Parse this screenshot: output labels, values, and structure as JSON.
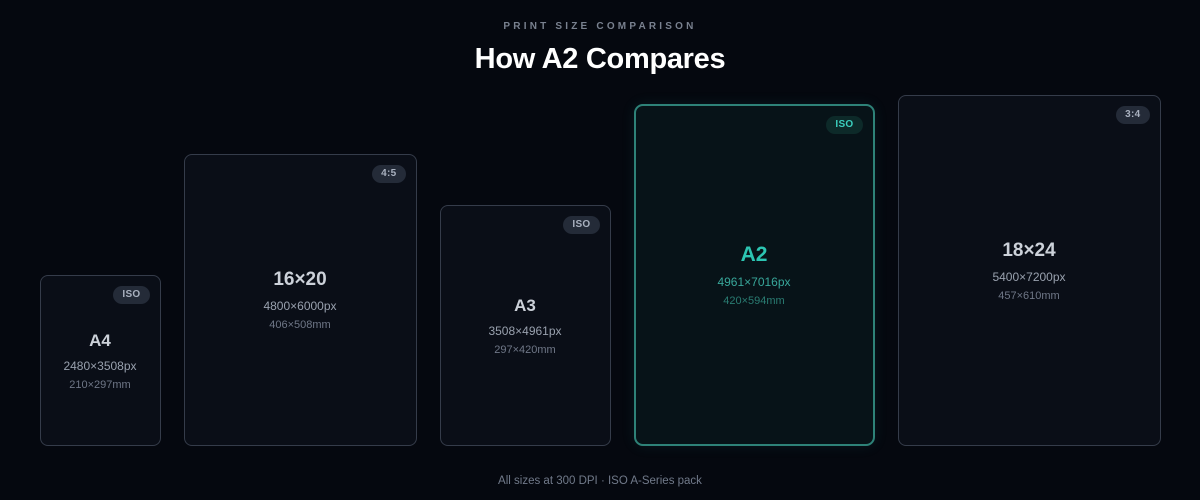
{
  "header": {
    "eyebrow": "PRINT SIZE COMPARISON",
    "title": "How A2 Compares"
  },
  "footer": {
    "note": "All sizes at 300 DPI · ISO A-Series pack"
  },
  "colors": {
    "page_bg": "#05080f",
    "card_bg": "#0a0e17",
    "card_border": "#353c4a",
    "accent": "#2cc5b2",
    "accent_border": "#2e8278",
    "accent_badge_bg": "#0d2a29",
    "badge_bg": "#242b38",
    "badge_text": "#a9b1bf",
    "title_text": "#ffffff",
    "muted_text": "#717a8a"
  },
  "chart_data": {
    "type": "bar",
    "title": "How A2 Compares",
    "subtitle": "PRINT SIZE COMPARISON",
    "note": "All sizes at 300 DPI · ISO A-Series pack",
    "unit": "mm",
    "categories": [
      "A4",
      "16×20",
      "A3",
      "A2",
      "18×24"
    ],
    "series": [
      {
        "name": "width_mm",
        "values": [
          210,
          406,
          297,
          420,
          457
        ]
      },
      {
        "name": "height_mm",
        "values": [
          297,
          508,
          420,
          594,
          610
        ]
      }
    ],
    "highlighted_category": "A2"
  },
  "cards": [
    {
      "name": "A4",
      "px_label": "2480×3508px",
      "mm_label": "210×297mm",
      "badge": "ISO",
      "mm_w": 210,
      "mm_h": 297,
      "highlighted": false
    },
    {
      "name": "16×20",
      "px_label": "4800×6000px",
      "mm_label": "406×508mm",
      "badge": "4:5",
      "mm_w": 406,
      "mm_h": 508,
      "highlighted": false
    },
    {
      "name": "A3",
      "px_label": "3508×4961px",
      "mm_label": "297×420mm",
      "badge": "ISO",
      "mm_w": 297,
      "mm_h": 420,
      "highlighted": false
    },
    {
      "name": "A2",
      "px_label": "4961×7016px",
      "mm_label": "420×594mm",
      "badge": "ISO",
      "mm_w": 420,
      "mm_h": 594,
      "highlighted": true
    },
    {
      "name": "18×24",
      "px_label": "5400×7200px",
      "mm_label": "457×610mm",
      "badge": "3:4",
      "mm_w": 457,
      "mm_h": 610,
      "highlighted": false
    }
  ]
}
